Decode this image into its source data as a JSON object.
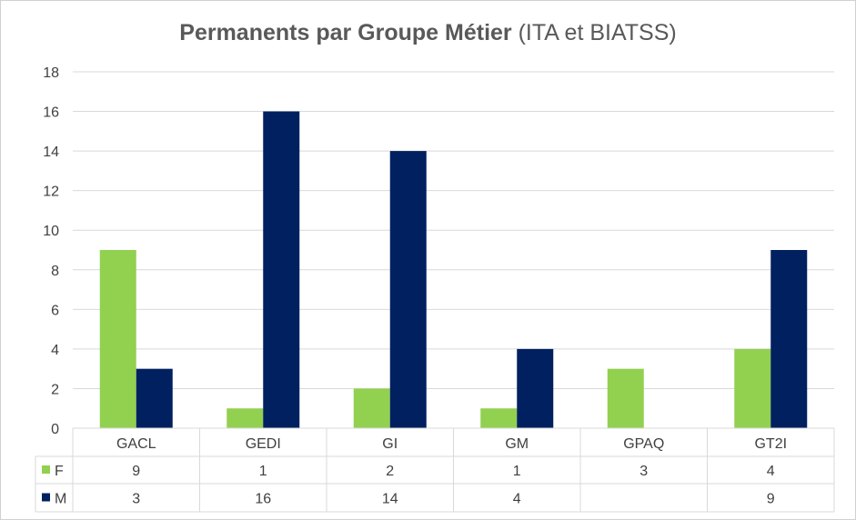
{
  "chart_data": {
    "type": "bar",
    "title_bold": "Permanents par Groupe Métier",
    "title_normal": "(ITA et BIATSS)",
    "categories": [
      "GACL",
      "GEDI",
      "GI",
      "GM",
      "GPAQ",
      "GT2I"
    ],
    "series": [
      {
        "name": "F",
        "color": "#92d050",
        "values": [
          9,
          1,
          2,
          1,
          3,
          4
        ]
      },
      {
        "name": "M",
        "color": "#002060",
        "values": [
          3,
          16,
          14,
          4,
          null,
          9
        ]
      }
    ],
    "ylim": [
      0,
      18
    ],
    "yticks": [
      0,
      2,
      4,
      6,
      8,
      10,
      12,
      14,
      16,
      18
    ],
    "grid": true,
    "legend": "data-table"
  }
}
